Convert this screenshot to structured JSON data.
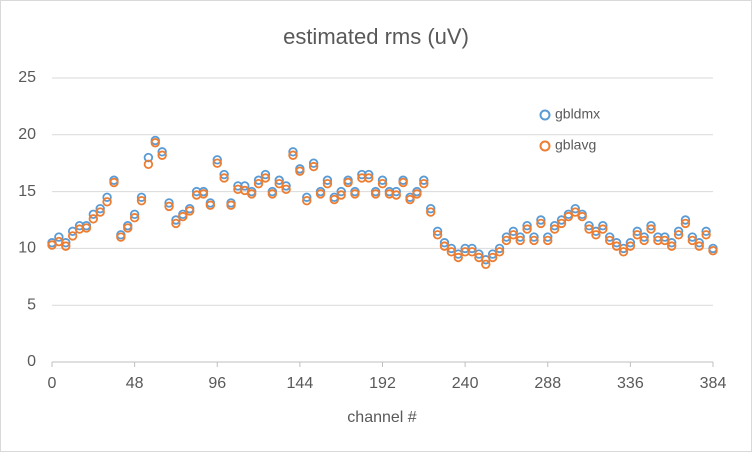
{
  "chart_data": {
    "type": "scatter",
    "title": "estimated rms (uV)",
    "x_label": "channel #",
    "x": [
      0,
      4,
      8,
      12,
      16,
      20,
      24,
      28,
      32,
      36,
      40,
      44,
      48,
      52,
      56,
      60,
      64,
      68,
      72,
      76,
      80,
      84,
      88,
      92,
      96,
      100,
      104,
      108,
      112,
      116,
      120,
      124,
      128,
      132,
      136,
      140,
      144,
      148,
      152,
      156,
      160,
      164,
      168,
      172,
      176,
      180,
      184,
      188,
      192,
      196,
      200,
      204,
      208,
      212,
      216,
      220,
      224,
      228,
      232,
      236,
      240,
      244,
      248,
      252,
      256,
      260,
      264,
      268,
      272,
      276,
      280,
      284,
      288,
      292,
      296,
      300,
      304,
      308,
      312,
      316,
      320,
      324,
      328,
      332,
      336,
      340,
      344,
      348,
      352,
      356,
      360,
      364,
      368,
      372,
      376,
      380,
      384
    ],
    "series": [
      {
        "name": "gbldmx",
        "color": "#5b9bd5",
        "values": [
          10.5,
          11,
          10.5,
          11.5,
          12,
          12,
          13,
          13.5,
          14.5,
          16,
          11.2,
          12,
          13,
          14.5,
          18,
          19.5,
          18.5,
          14,
          12.5,
          13,
          13.5,
          15,
          15,
          14,
          17.8,
          16.5,
          14,
          15.5,
          15.5,
          15,
          16,
          16.5,
          15,
          16,
          15.5,
          18.5,
          17,
          14.5,
          17.5,
          15,
          16,
          14.5,
          15,
          16,
          15,
          16.5,
          16.5,
          15,
          16,
          15,
          15,
          16,
          14.5,
          15,
          16,
          13.5,
          11.5,
          10.5,
          10,
          9.5,
          10,
          10,
          9.5,
          9,
          9.5,
          10,
          11,
          11.5,
          11,
          12,
          11,
          12.5,
          11,
          12,
          12.5,
          13,
          13.5,
          13,
          12,
          11.5,
          12,
          11,
          10.5,
          10,
          10.5,
          11.5,
          11,
          12,
          11,
          11,
          10.5,
          11.5,
          12.5,
          11,
          10.5,
          11.5,
          10
        ]
      },
      {
        "name": "gblavg",
        "color": "#ed7d31",
        "values": [
          10.3,
          10.6,
          10.2,
          11.1,
          11.7,
          11.8,
          12.6,
          13.2,
          14.1,
          15.8,
          11,
          11.8,
          12.7,
          14.2,
          17.4,
          19.3,
          18.2,
          13.7,
          12.2,
          12.8,
          13.3,
          14.7,
          14.8,
          13.8,
          17.5,
          16.2,
          13.8,
          15.2,
          15.1,
          14.8,
          15.7,
          16.2,
          14.8,
          15.7,
          15.2,
          18.2,
          16.8,
          14.2,
          17.2,
          14.8,
          15.7,
          14.3,
          14.7,
          15.8,
          14.8,
          16.2,
          16.2,
          14.8,
          15.7,
          14.8,
          14.7,
          15.8,
          14.3,
          14.8,
          15.7,
          13.2,
          11.2,
          10.2,
          9.7,
          9.2,
          9.7,
          9.7,
          9.2,
          8.6,
          9.2,
          9.7,
          10.7,
          11.2,
          10.7,
          11.7,
          10.7,
          12.2,
          10.7,
          11.7,
          12.2,
          12.8,
          13.2,
          12.8,
          11.7,
          11.2,
          11.7,
          10.7,
          10.2,
          9.7,
          10.2,
          11.2,
          10.7,
          11.7,
          10.7,
          10.7,
          10.2,
          11.2,
          12.2,
          10.7,
          10.2,
          11.2,
          9.8
        ]
      }
    ],
    "xlim": [
      0,
      384
    ],
    "xticks": [
      0,
      48,
      96,
      144,
      192,
      240,
      288,
      336,
      384
    ],
    "ylim": [
      0,
      25
    ],
    "yticks": [
      0,
      5,
      10,
      15,
      20,
      25
    ],
    "grid": true,
    "legend": "right"
  }
}
